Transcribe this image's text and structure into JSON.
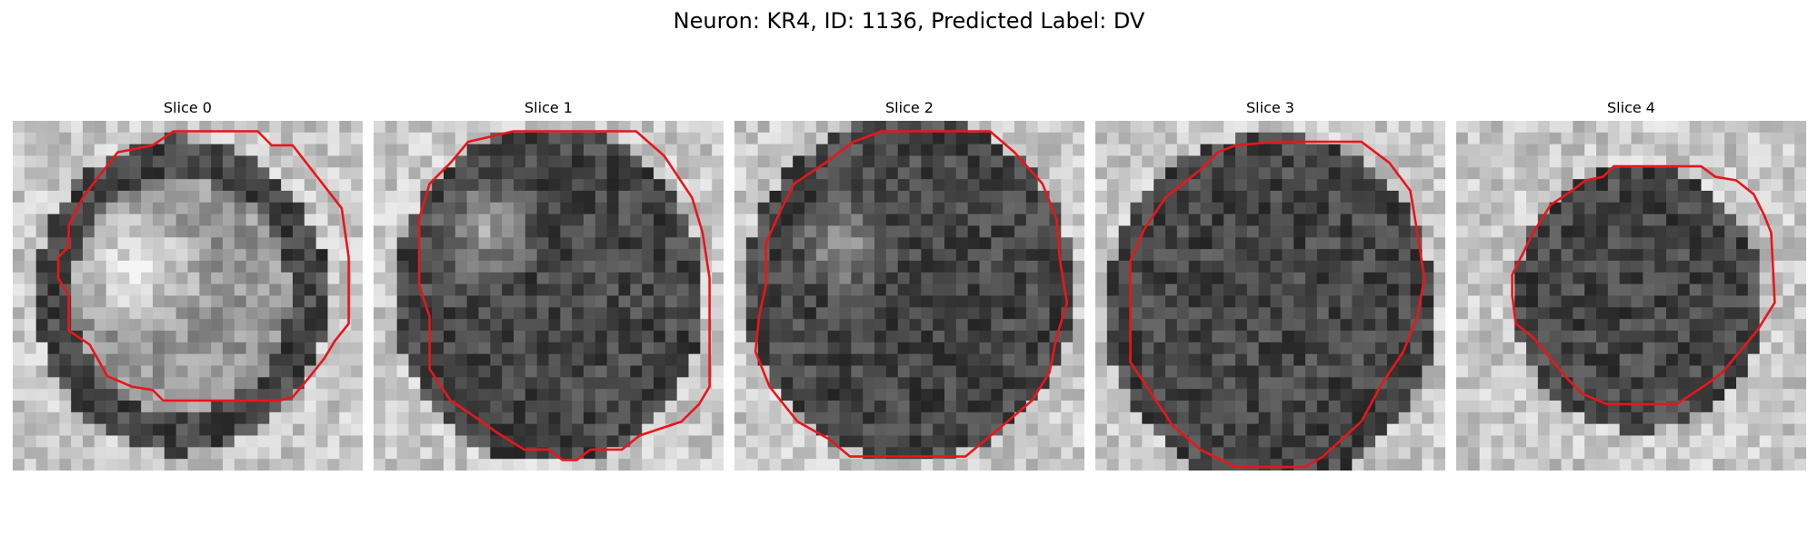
{
  "figure": {
    "title": "Neuron: KR4, ID: 1136, Predicted Label: DV"
  },
  "contour_color": "#e8161b",
  "slices": [
    {
      "title": "Slice 0"
    },
    {
      "title": "Slice 1"
    },
    {
      "title": "Slice 2"
    },
    {
      "title": "Slice 3"
    },
    {
      "title": "Slice 4"
    }
  ]
}
